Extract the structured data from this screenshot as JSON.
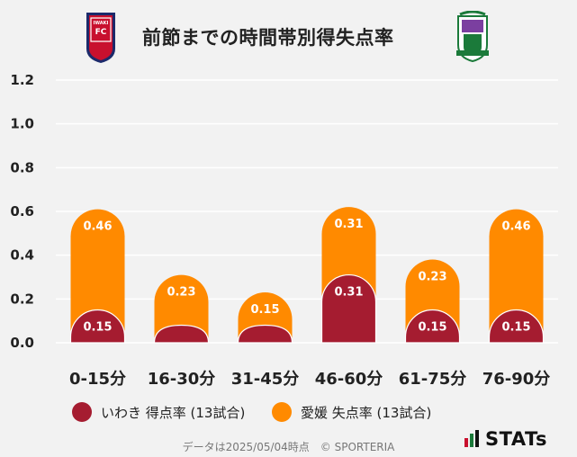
{
  "header": {
    "title": "前節までの時間帯別得失点率",
    "home_crest_text": "IWAKI FC"
  },
  "colors": {
    "home": "#a51c30",
    "away": "#ff8a00",
    "grid": "#ffffff",
    "background": "#f2f2f2"
  },
  "chart_data": {
    "type": "bar",
    "stacked": true,
    "categories": [
      "0-15分",
      "16-30分",
      "31-45分",
      "46-60分",
      "61-75分",
      "76-90分"
    ],
    "series": [
      {
        "name": "いわき 得点率 (13試合)",
        "values": [
          0.15,
          0.08,
          0.08,
          0.31,
          0.15,
          0.15
        ],
        "labels": [
          "0.15",
          "",
          "",
          "0.31",
          "0.15",
          "0.15"
        ]
      },
      {
        "name": "愛媛 失点率 (13試合)",
        "values": [
          0.46,
          0.23,
          0.15,
          0.31,
          0.23,
          0.46
        ],
        "labels": [
          "0.46",
          "0.23",
          "0.15",
          "0.31",
          "0.23",
          "0.46"
        ]
      }
    ],
    "yticks": [
      "0.0",
      "0.2",
      "0.4",
      "0.6",
      "0.8",
      "1.0",
      "1.2"
    ],
    "ylim": [
      0,
      1.2
    ],
    "grid": true,
    "legend_position": "bottom"
  },
  "legend": {
    "home_label": "いわき 得点率 (13試合)",
    "away_label": "愛媛 失点率 (13試合)"
  },
  "footer": {
    "note": "データは2025/05/04時点　© SPORTERIA"
  },
  "brand": {
    "stats_text": "STATs"
  }
}
